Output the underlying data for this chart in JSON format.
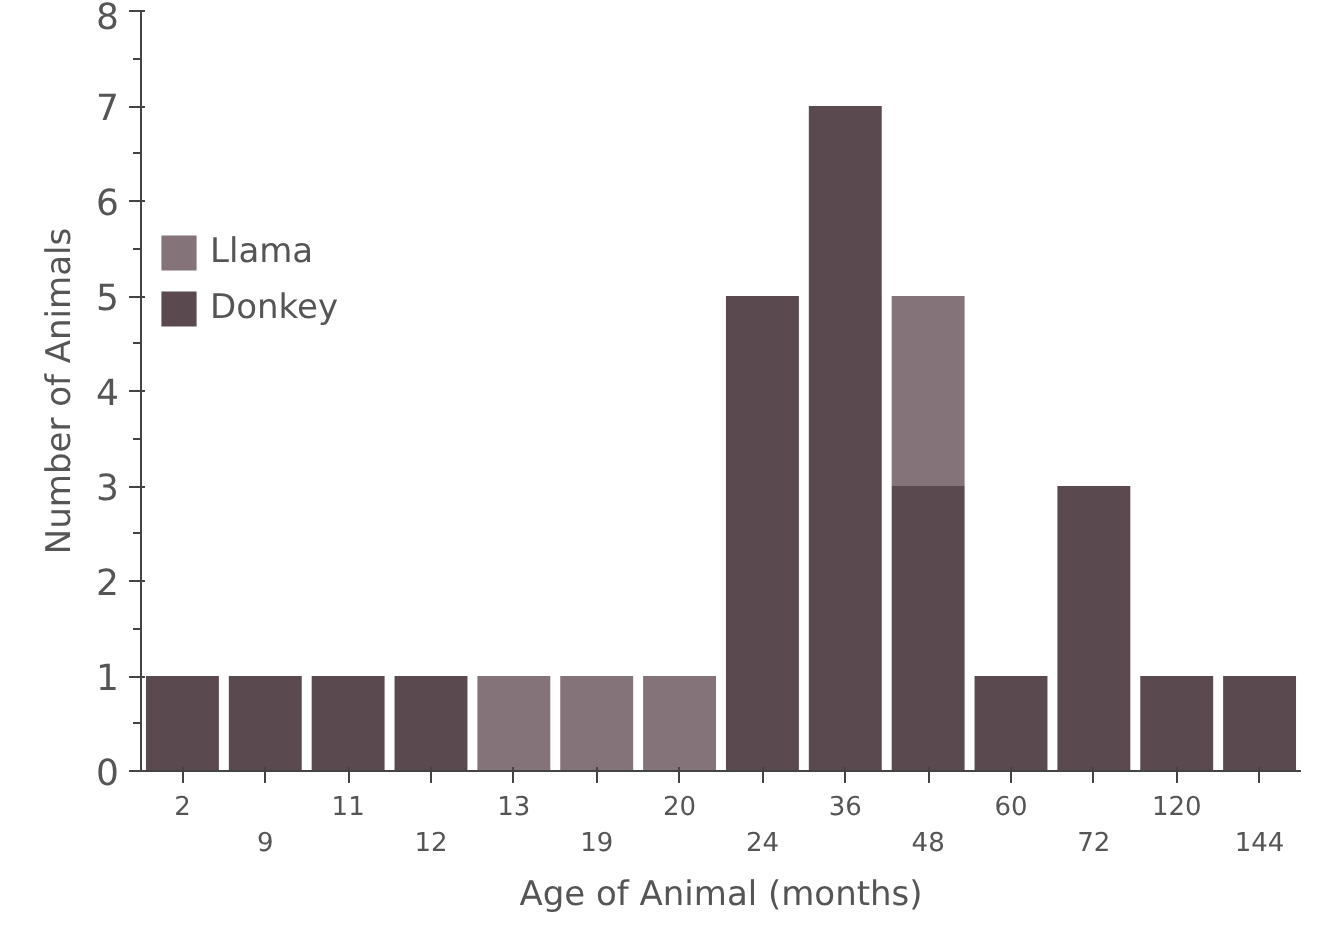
{
  "chart_data": {
    "type": "bar",
    "stacked": true,
    "xlabel": "Age of Animal (months)",
    "ylabel": "Number of Animals",
    "categories": [
      "2",
      "9",
      "11",
      "12",
      "13",
      "19",
      "20",
      "24",
      "36",
      "48",
      "60",
      "72",
      "120",
      "144"
    ],
    "series": [
      {
        "name": "Donkey",
        "color": "#5a4a50",
        "values": [
          1,
          1,
          1,
          1,
          0,
          0,
          0,
          5,
          7,
          3,
          1,
          3,
          1,
          1
        ]
      },
      {
        "name": "Llama",
        "color": "#85737a",
        "values": [
          0,
          0,
          0,
          0,
          1,
          1,
          1,
          0,
          0,
          2,
          0,
          0,
          0,
          0
        ]
      }
    ],
    "ylim": [
      0,
      8
    ],
    "yticks": [
      0,
      {
        "value": 0.5,
        "label": null
      },
      1,
      {
        "value": 1.5,
        "label": null
      },
      2,
      {
        "value": 2.5,
        "label": null
      },
      3,
      {
        "value": 3.5,
        "label": null
      },
      4,
      {
        "value": 4.5,
        "label": null
      },
      5,
      {
        "value": 5.5,
        "label": null
      },
      6,
      {
        "value": 6.5,
        "label": null
      },
      7,
      {
        "value": 7.5,
        "label": null
      },
      8
    ],
    "grid": false,
    "legend": "left"
  }
}
